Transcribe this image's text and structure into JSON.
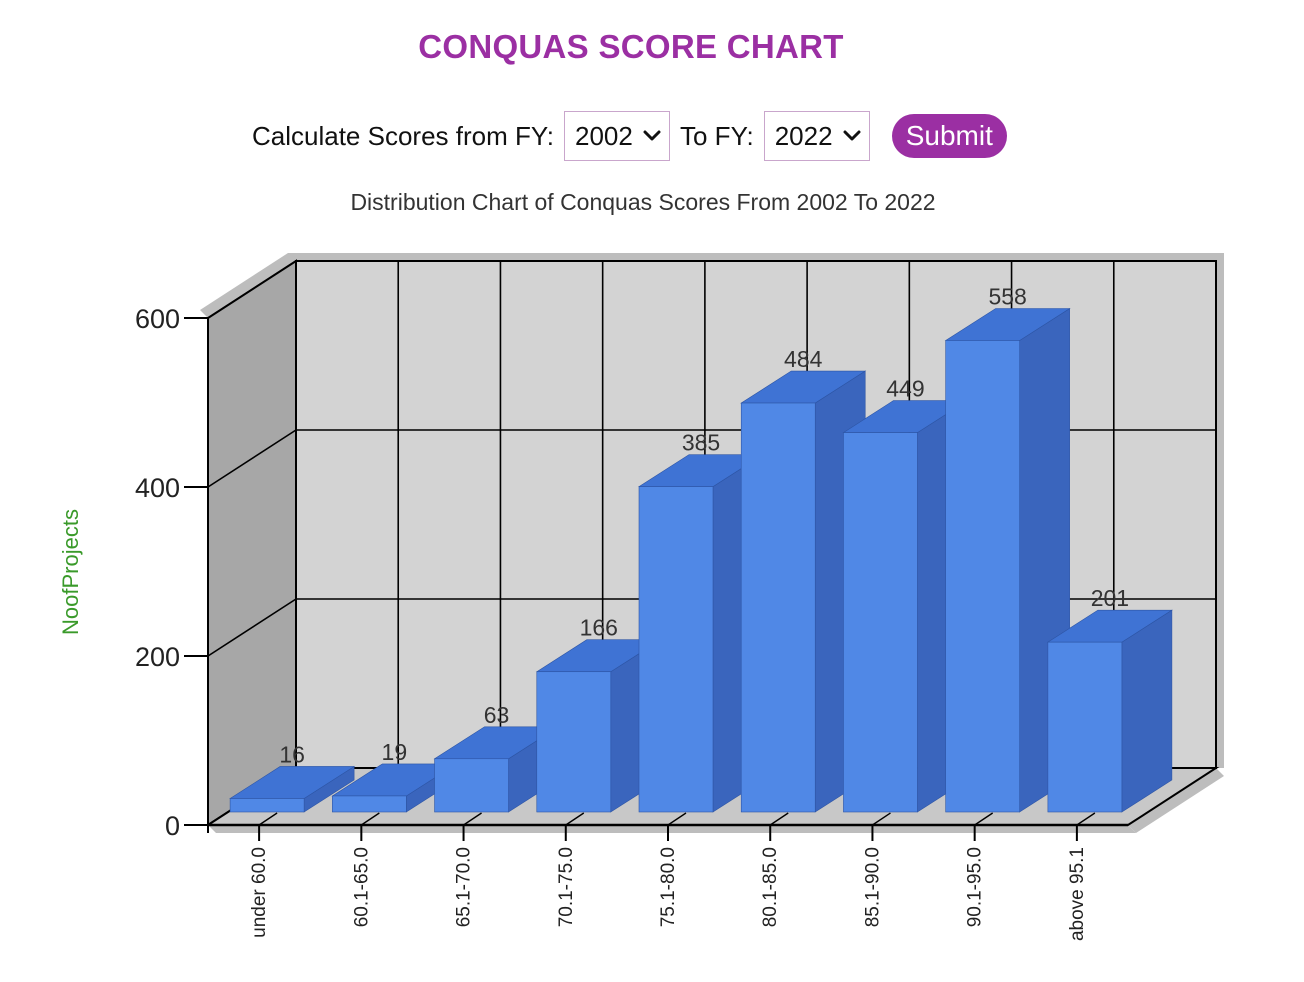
{
  "page": {
    "title": "CONQUAS SCORE CHART"
  },
  "filter": {
    "from_label": "Calculate Scores from FY:",
    "from_value": "2002",
    "to_label": "To FY:",
    "to_value": "2022",
    "submit_label": "Submit"
  },
  "colors": {
    "title": "#9b2fa3",
    "bar_front": "#5088e6",
    "bar_top": "#3f73d4",
    "bar_side": "#3a65bd",
    "wall": "#d3d3d3",
    "left_wall": "#a7a7a7",
    "ylabel": "#3a9a2a"
  },
  "chart_data": {
    "type": "bar",
    "title": "Distribution Chart of Conquas Scores From 2002 To 2022",
    "xlabel": "",
    "ylabel": "NoofProjects",
    "categories": [
      "under 60.0",
      "60.1-65.0",
      "65.1-70.0",
      "70.1-75.0",
      "75.1-80.0",
      "80.1-85.0",
      "85.1-90.0",
      "90.1-95.0",
      "above 95.1"
    ],
    "values": [
      16,
      19,
      63,
      166,
      385,
      484,
      449,
      558,
      201
    ],
    "yticks": [
      0,
      200,
      400,
      600
    ],
    "ylim": [
      0,
      600
    ],
    "grid": true,
    "data_labels": true,
    "style": "3d"
  }
}
